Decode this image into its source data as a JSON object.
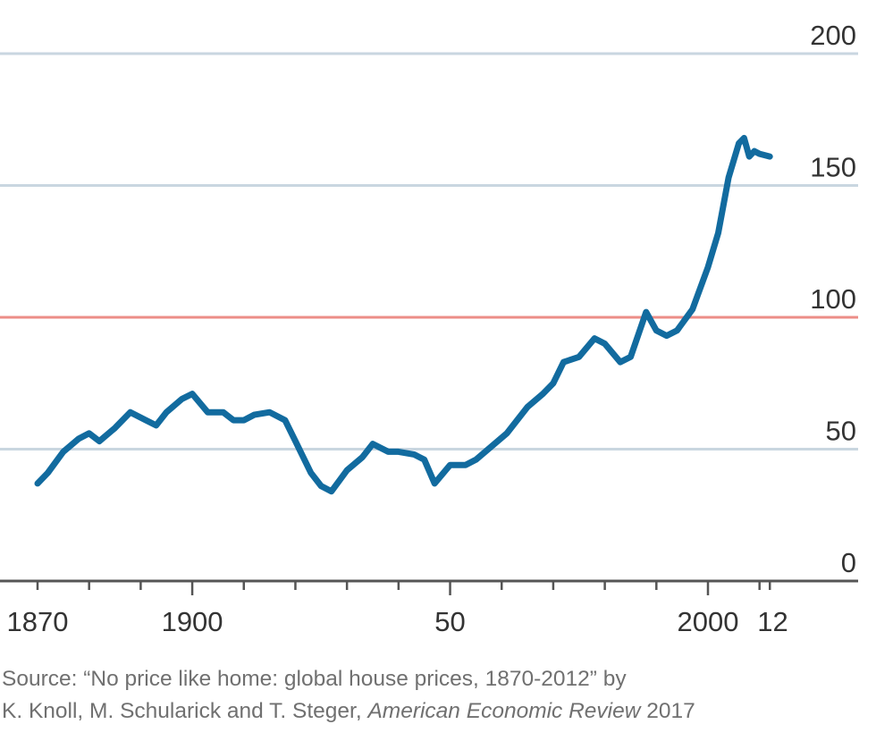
{
  "chart_data": {
    "type": "line",
    "title": "",
    "xlabel": "",
    "ylabel": "",
    "xlim": [
      1870,
      2012
    ],
    "ylim": [
      0,
      200
    ],
    "x_ticks": [
      1870,
      1880,
      1890,
      1900,
      1910,
      1920,
      1930,
      1940,
      1950,
      1960,
      1970,
      1980,
      1990,
      2000,
      2010,
      2012
    ],
    "x_tick_labels": [
      {
        "value": 1870,
        "label": "1870"
      },
      {
        "value": 1900,
        "label": "1900"
      },
      {
        "value": 1950,
        "label": "50"
      },
      {
        "value": 2000,
        "label": "2000"
      },
      {
        "value": 2012,
        "label": "12"
      }
    ],
    "y_ticks": [
      0,
      50,
      100,
      150,
      200
    ],
    "y_tick_labels": [
      "0",
      "50",
      "100",
      "150",
      "200"
    ],
    "y_axis_side": "right",
    "grid": true,
    "reference_line": 100,
    "colors": {
      "series": "#126b9f",
      "grid": "#c9d6e0",
      "reference": "#ec8e87",
      "axis": "#555555"
    },
    "series": [
      {
        "x": [
          1870,
          1872,
          1875,
          1878,
          1880,
          1882,
          1885,
          1888,
          1891,
          1893,
          1895,
          1898,
          1900,
          1903,
          1906,
          1908,
          1910,
          1912,
          1915,
          1918,
          1920,
          1923,
          1925,
          1927,
          1930,
          1933,
          1935,
          1938,
          1940,
          1943,
          1945,
          1947,
          1950,
          1953,
          1955,
          1958,
          1961,
          1965,
          1968,
          1970,
          1972,
          1975,
          1978,
          1980,
          1983,
          1985,
          1988,
          1990,
          1992,
          1994,
          1997,
          2000,
          2002,
          2004,
          2006,
          2007,
          2008,
          2009,
          2010,
          2012
        ],
        "values": [
          37,
          41,
          49,
          54,
          56,
          53,
          58,
          64,
          61,
          59,
          64,
          69,
          71,
          64,
          64,
          61,
          61,
          63,
          64,
          61,
          53,
          41,
          36,
          34,
          42,
          47,
          52,
          49,
          49,
          48,
          46,
          37,
          44,
          44,
          46,
          51,
          56,
          66,
          71,
          75,
          83,
          85,
          92,
          90,
          83,
          85,
          102,
          95,
          93,
          95,
          103,
          119,
          132,
          153,
          166,
          168,
          161,
          163,
          162,
          161
        ]
      }
    ]
  },
  "source": {
    "line1": "Source: “No price like home: global house prices, 1870-2012” by",
    "line2_prefix": "K. Knoll, M. Schularick and T. Steger, ",
    "line2_journal": "American Economic Review",
    "line2_suffix": " 2017"
  }
}
